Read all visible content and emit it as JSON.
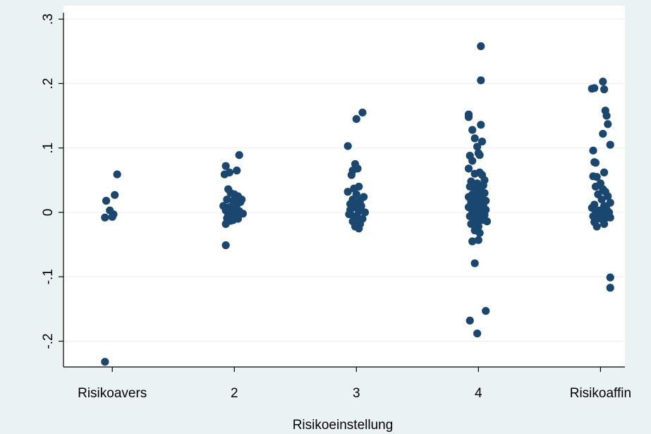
{
  "chart_data": {
    "type": "scatter",
    "xlabel": "Risikoeinstellung",
    "ylabel": "",
    "categories": [
      "Risikoavers",
      "2",
      "3",
      "4",
      "Risikoaffin"
    ],
    "x_ticks": [
      1,
      2,
      3,
      4,
      5
    ],
    "xlim": [
      0.6,
      5.2
    ],
    "ylim": [
      -0.24,
      0.31
    ],
    "y_ticks": [
      {
        "value": -0.2,
        "label": "-.2"
      },
      {
        "value": -0.1,
        "label": "-.1"
      },
      {
        "value": 0,
        "label": "0"
      },
      {
        "value": 0.1,
        "label": ".1"
      },
      {
        "value": 0.2,
        "label": ".2"
      },
      {
        "value": 0.3,
        "label": ".3"
      }
    ],
    "grid": true,
    "colors": {
      "marker": "#1a476f",
      "plot_bg": "#ffffff",
      "page_bg": "#eaf2f3",
      "grid": "#eaf2f3"
    },
    "points": [
      [
        0.95,
        0.018
      ],
      [
        1.04,
        0.059
      ],
      [
        1.02,
        0.027
      ],
      [
        0.98,
        0.003
      ],
      [
        1.0,
        -0.007
      ],
      [
        1.01,
        -0.003
      ],
      [
        0.94,
        -0.008
      ],
      [
        0.94,
        -0.232
      ],
      [
        1.93,
        0.072
      ],
      [
        2.04,
        0.089
      ],
      [
        1.96,
        0.062
      ],
      [
        2.02,
        0.065
      ],
      [
        1.92,
        0.059
      ],
      [
        1.95,
        0.036
      ],
      [
        1.97,
        0.03
      ],
      [
        2.0,
        0.028
      ],
      [
        2.03,
        0.025
      ],
      [
        1.94,
        0.02
      ],
      [
        1.99,
        0.018
      ],
      [
        2.05,
        0.016
      ],
      [
        1.91,
        0.01
      ],
      [
        2.02,
        0.012
      ],
      [
        1.96,
        0.008
      ],
      [
        2.0,
        0.005
      ],
      [
        1.93,
        0.003
      ],
      [
        2.04,
        0.002
      ],
      [
        1.98,
        0.0
      ],
      [
        2.07,
        -0.002
      ],
      [
        1.95,
        -0.004
      ],
      [
        2.01,
        -0.006
      ],
      [
        1.94,
        -0.009
      ],
      [
        2.03,
        -0.01
      ],
      [
        1.97,
        -0.013
      ],
      [
        1.93,
        -0.018
      ],
      [
        2.06,
        0.02
      ],
      [
        1.99,
        -0.012
      ],
      [
        1.93,
        -0.051
      ],
      [
        3.0,
        0.145
      ],
      [
        3.05,
        0.155
      ],
      [
        2.93,
        0.103
      ],
      [
        2.97,
        0.065
      ],
      [
        3.01,
        0.068
      ],
      [
        2.96,
        0.058
      ],
      [
        2.99,
        0.075
      ],
      [
        2.93,
        0.032
      ],
      [
        2.98,
        0.037
      ],
      [
        3.02,
        0.04
      ],
      [
        3.06,
        0.024
      ],
      [
        3.03,
        0.018
      ],
      [
        2.95,
        0.013
      ],
      [
        2.99,
        0.012
      ],
      [
        3.04,
        0.01
      ],
      [
        3.0,
        0.007
      ],
      [
        2.95,
        0.004
      ],
      [
        3.02,
        0.002
      ],
      [
        3.07,
        0.0
      ],
      [
        2.94,
        -0.003
      ],
      [
        2.98,
        -0.006
      ],
      [
        3.01,
        -0.008
      ],
      [
        3.05,
        -0.01
      ],
      [
        2.97,
        -0.014
      ],
      [
        3.03,
        -0.018
      ],
      [
        2.99,
        -0.022
      ],
      [
        3.02,
        -0.025
      ],
      [
        3.0,
        0.028
      ],
      [
        2.97,
        0.02
      ],
      [
        4.02,
        0.258
      ],
      [
        4.02,
        0.205
      ],
      [
        3.92,
        0.152
      ],
      [
        3.92,
        0.148
      ],
      [
        4.02,
        0.136
      ],
      [
        3.95,
        0.128
      ],
      [
        3.97,
        0.115
      ],
      [
        4.03,
        0.11
      ],
      [
        3.99,
        0.102
      ],
      [
        4.0,
        0.092
      ],
      [
        3.93,
        0.088
      ],
      [
        4.01,
        0.089
      ],
      [
        3.95,
        0.08
      ],
      [
        3.92,
        0.068
      ],
      [
        4.01,
        0.062
      ],
      [
        3.97,
        0.06
      ],
      [
        4.03,
        0.058
      ],
      [
        3.94,
        0.048
      ],
      [
        4.05,
        0.05
      ],
      [
        3.99,
        0.045
      ],
      [
        4.04,
        0.042
      ],
      [
        3.93,
        0.04
      ],
      [
        3.97,
        0.036
      ],
      [
        4.01,
        0.034
      ],
      [
        4.05,
        0.03
      ],
      [
        3.95,
        0.028
      ],
      [
        4.0,
        0.026
      ],
      [
        3.92,
        0.024
      ],
      [
        4.03,
        0.022
      ],
      [
        3.98,
        0.02
      ],
      [
        4.06,
        0.018
      ],
      [
        3.94,
        0.016
      ],
      [
        4.01,
        0.014
      ],
      [
        3.96,
        0.012
      ],
      [
        4.04,
        0.01
      ],
      [
        3.92,
        0.008
      ],
      [
        3.99,
        0.006
      ],
      [
        4.06,
        0.004
      ],
      [
        3.95,
        0.002
      ],
      [
        4.02,
        0.0
      ],
      [
        3.97,
        -0.002
      ],
      [
        4.05,
        -0.004
      ],
      [
        3.93,
        -0.006
      ],
      [
        4.0,
        -0.008
      ],
      [
        3.96,
        -0.01
      ],
      [
        4.03,
        -0.012
      ],
      [
        3.98,
        -0.015
      ],
      [
        4.07,
        -0.014
      ],
      [
        3.94,
        -0.018
      ],
      [
        4.0,
        -0.022
      ],
      [
        3.97,
        -0.028
      ],
      [
        4.01,
        -0.032
      ],
      [
        3.95,
        -0.045
      ],
      [
        4.0,
        -0.043
      ],
      [
        3.97,
        -0.079
      ],
      [
        3.93,
        -0.168
      ],
      [
        4.06,
        -0.153
      ],
      [
        3.99,
        -0.188
      ],
      [
        5.02,
        0.203
      ],
      [
        4.93,
        0.192
      ],
      [
        4.95,
        0.193
      ],
      [
        5.03,
        0.191
      ],
      [
        5.04,
        0.158
      ],
      [
        5.05,
        0.15
      ],
      [
        5.06,
        0.137
      ],
      [
        5.02,
        0.122
      ],
      [
        5.08,
        0.105
      ],
      [
        4.94,
        0.096
      ],
      [
        4.95,
        0.078
      ],
      [
        4.96,
        0.077
      ],
      [
        5.03,
        0.062
      ],
      [
        4.94,
        0.056
      ],
      [
        4.97,
        0.055
      ],
      [
        4.96,
        0.04
      ],
      [
        5.0,
        0.045
      ],
      [
        5.02,
        0.036
      ],
      [
        5.04,
        0.032
      ],
      [
        4.98,
        0.028
      ],
      [
        5.06,
        0.025
      ],
      [
        5.01,
        0.02
      ],
      [
        5.08,
        0.015
      ],
      [
        4.95,
        0.012
      ],
      [
        5.03,
        0.01
      ],
      [
        4.93,
        0.007
      ],
      [
        5.05,
        0.005
      ],
      [
        4.99,
        0.003
      ],
      [
        5.07,
        0.0
      ],
      [
        4.96,
        -0.002
      ],
      [
        5.02,
        -0.004
      ],
      [
        4.94,
        -0.006
      ],
      [
        5.05,
        -0.008
      ],
      [
        5.0,
        -0.01
      ],
      [
        5.08,
        -0.008
      ],
      [
        4.95,
        -0.015
      ],
      [
        5.03,
        -0.018
      ],
      [
        4.97,
        -0.022
      ],
      [
        5.08,
        -0.101
      ],
      [
        5.08,
        -0.117
      ]
    ]
  }
}
